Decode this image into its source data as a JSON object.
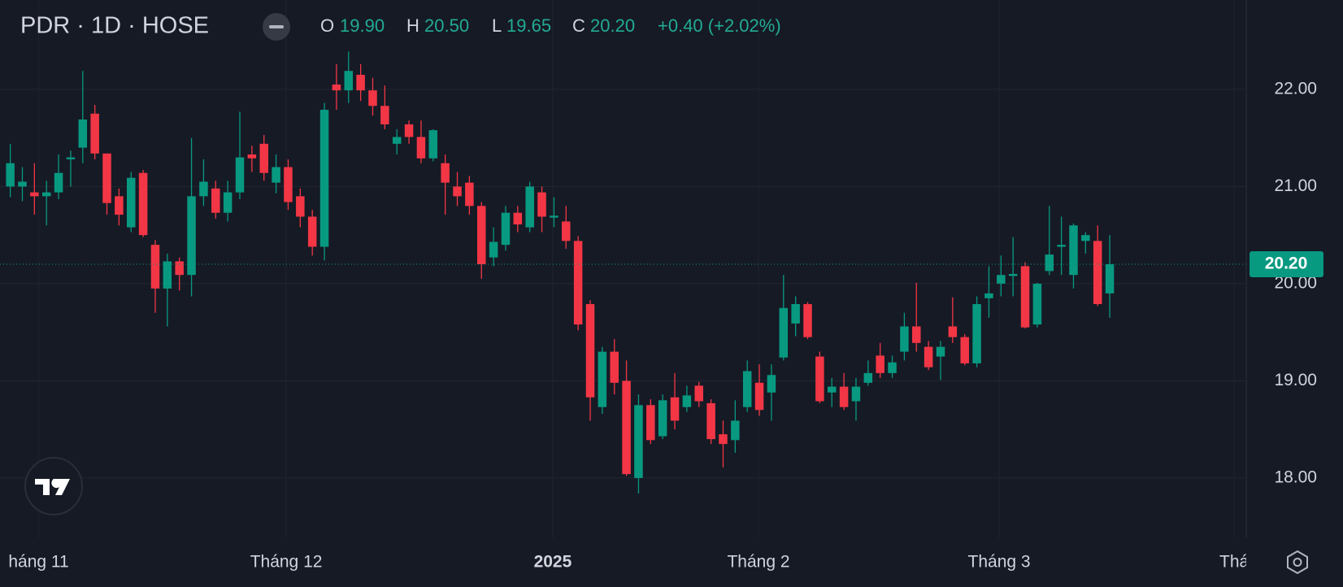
{
  "header": {
    "symbol": "PDR · 1D · HOSE",
    "open": {
      "label": "O",
      "value": "19.90"
    },
    "high": {
      "label": "H",
      "value": "20.50"
    },
    "low": {
      "label": "L",
      "value": "19.65"
    },
    "close": {
      "label": "C",
      "value": "20.20"
    },
    "change": "+0.40 (+2.02%)"
  },
  "chart_data": {
    "type": "candlestick",
    "up_color": "#089981",
    "down_color": "#f23645",
    "grid": true,
    "categories": [
      null,
      null,
      null,
      null,
      null,
      null,
      null,
      null,
      null,
      null,
      null,
      null,
      null,
      null,
      null,
      null,
      null,
      null,
      null,
      null,
      null,
      null,
      null,
      null,
      null,
      null,
      null,
      null,
      null,
      null,
      null,
      null,
      null,
      null,
      null,
      null,
      null,
      null,
      null,
      null,
      null,
      null,
      null,
      null,
      null,
      null,
      null,
      null,
      null,
      null,
      null,
      null,
      null,
      null,
      null,
      null,
      null,
      null,
      null,
      null,
      null,
      null,
      null,
      null,
      null,
      null,
      null,
      null,
      null,
      null,
      null,
      null,
      null,
      null,
      null,
      null,
      null,
      null,
      null,
      null,
      null,
      null,
      null,
      null,
      null,
      null,
      null,
      null,
      null,
      null,
      null,
      null
    ],
    "open": [
      21.0,
      21.0,
      20.94,
      20.9,
      20.94,
      21.28,
      21.4,
      21.75,
      21.34,
      20.9,
      20.58,
      21.14,
      20.4,
      19.95,
      20.23,
      20.09,
      20.9,
      20.98,
      20.73,
      20.94,
      21.33,
      21.44,
      21.04,
      21.2,
      20.9,
      20.69,
      20.38,
      22.05,
      21.99,
      22.15,
      21.99,
      21.83,
      21.44,
      21.64,
      21.51,
      21.29,
      21.24,
      21.0,
      21.04,
      20.8,
      20.27,
      20.4,
      20.73,
      20.58,
      20.94,
      20.68,
      20.64,
      20.44,
      19.79,
      18.73,
      19.3,
      19.0,
      18.0,
      18.75,
      18.43,
      18.83,
      18.73,
      18.95,
      18.77,
      18.45,
      18.39,
      18.73,
      18.98,
      18.88,
      19.24,
      19.59,
      19.79,
      19.25,
      18.88,
      18.94,
      18.79,
      18.98,
      19.26,
      19.08,
      19.3,
      19.56,
      19.35,
      19.25,
      19.56,
      19.45,
      19.18,
      19.85,
      20.0,
      20.08,
      20.18,
      19.58,
      20.13,
      20.38,
      20.09,
      20.44,
      20.44,
      19.9
    ],
    "high": [
      21.44,
      21.2,
      21.24,
      21.06,
      21.33,
      21.37,
      22.19,
      21.84,
      21.34,
      20.98,
      21.15,
      21.17,
      20.45,
      20.31,
      20.27,
      21.5,
      21.28,
      21.06,
      21.06,
      21.77,
      21.42,
      21.53,
      21.33,
      21.28,
      20.98,
      20.76,
      21.86,
      22.26,
      22.39,
      22.26,
      22.12,
      22.04,
      21.59,
      21.68,
      21.68,
      21.59,
      21.33,
      21.15,
      21.11,
      20.84,
      20.58,
      20.8,
      20.8,
      21.05,
      21.0,
      20.89,
      20.8,
      20.49,
      19.83,
      19.35,
      19.43,
      19.21,
      18.86,
      18.81,
      18.86,
      19.08,
      18.95,
      18.99,
      18.81,
      18.59,
      18.8,
      19.21,
      19.17,
      19.17,
      20.09,
      19.87,
      19.81,
      19.3,
      19.03,
      19.08,
      19.03,
      19.21,
      19.39,
      19.26,
      19.7,
      20.01,
      19.41,
      19.41,
      19.86,
      19.48,
      19.87,
      20.18,
      20.29,
      20.48,
      20.22,
      20.01,
      20.8,
      20.69,
      20.62,
      20.53,
      20.6,
      20.5
    ],
    "low": [
      20.89,
      20.85,
      20.71,
      20.6,
      20.87,
      21.0,
      21.24,
      21.28,
      20.71,
      20.6,
      20.53,
      20.48,
      19.7,
      19.56,
      19.93,
      19.87,
      20.8,
      20.67,
      20.64,
      20.87,
      21.15,
      21.06,
      20.93,
      20.76,
      20.58,
      20.29,
      20.24,
      21.79,
      21.86,
      21.88,
      21.73,
      21.59,
      21.33,
      21.44,
      21.24,
      21.26,
      20.71,
      20.8,
      20.71,
      20.05,
      20.18,
      20.34,
      20.53,
      20.53,
      20.53,
      20.58,
      20.36,
      19.52,
      18.59,
      18.66,
      18.86,
      18.02,
      17.84,
      18.35,
      18.4,
      18.5,
      18.68,
      18.73,
      18.35,
      18.11,
      18.26,
      18.68,
      18.64,
      18.59,
      19.21,
      19.46,
      19.43,
      18.77,
      18.73,
      18.7,
      18.59,
      18.95,
      19.03,
      19.03,
      19.21,
      19.3,
      19.11,
      19.01,
      19.39,
      19.16,
      19.14,
      19.65,
      19.87,
      19.87,
      19.54,
      19.55,
      20.09,
      20.09,
      19.95,
      20.31,
      19.77,
      19.65
    ],
    "close": [
      21.24,
      21.05,
      20.9,
      20.94,
      21.14,
      21.3,
      21.69,
      21.34,
      20.83,
      20.71,
      21.09,
      20.5,
      19.95,
      20.23,
      20.09,
      20.9,
      21.05,
      20.73,
      20.94,
      21.3,
      21.29,
      21.14,
      21.2,
      20.84,
      20.69,
      20.38,
      21.79,
      21.99,
      22.19,
      21.99,
      21.83,
      21.64,
      21.51,
      21.51,
      21.29,
      21.58,
      21.04,
      20.9,
      20.8,
      20.2,
      20.43,
      20.73,
      20.61,
      21.0,
      20.69,
      20.7,
      20.44,
      19.58,
      18.83,
      19.3,
      18.98,
      18.04,
      18.75,
      18.39,
      18.8,
      18.59,
      18.85,
      18.79,
      18.4,
      18.35,
      18.59,
      19.1,
      18.7,
      19.06,
      19.75,
      19.79,
      19.45,
      18.79,
      18.94,
      18.73,
      18.94,
      19.08,
      19.08,
      19.19,
      19.56,
      19.39,
      19.14,
      19.35,
      19.45,
      19.18,
      19.79,
      19.9,
      20.09,
      20.1,
      19.55,
      20.0,
      20.3,
      20.4,
      20.6,
      20.5,
      19.79,
      20.2
    ],
    "ylim": [
      17.38,
      22.92
    ],
    "yticks": [
      {
        "value": 18,
        "label": "18.00"
      },
      {
        "value": 19,
        "label": "19.00"
      },
      {
        "value": 20,
        "label": "20.00"
      },
      {
        "value": 21,
        "label": "21.00"
      },
      {
        "value": 22,
        "label": "22.00"
      }
    ],
    "xlim": [
      -0.85,
      102.3
    ],
    "xticks": [
      {
        "value": 2.35,
        "label": "háng 11"
      },
      {
        "value": 22.84,
        "label": "Tháng 12"
      },
      {
        "value": 44.9,
        "label": "2025"
      },
      {
        "value": 61.93,
        "label": "Tháng 2"
      },
      {
        "value": 81.85,
        "label": "Tháng 3"
      },
      {
        "value": 101.3,
        "label": "Thá"
      }
    ],
    "last_price": {
      "value": 20.2,
      "label": "20.20"
    }
  }
}
